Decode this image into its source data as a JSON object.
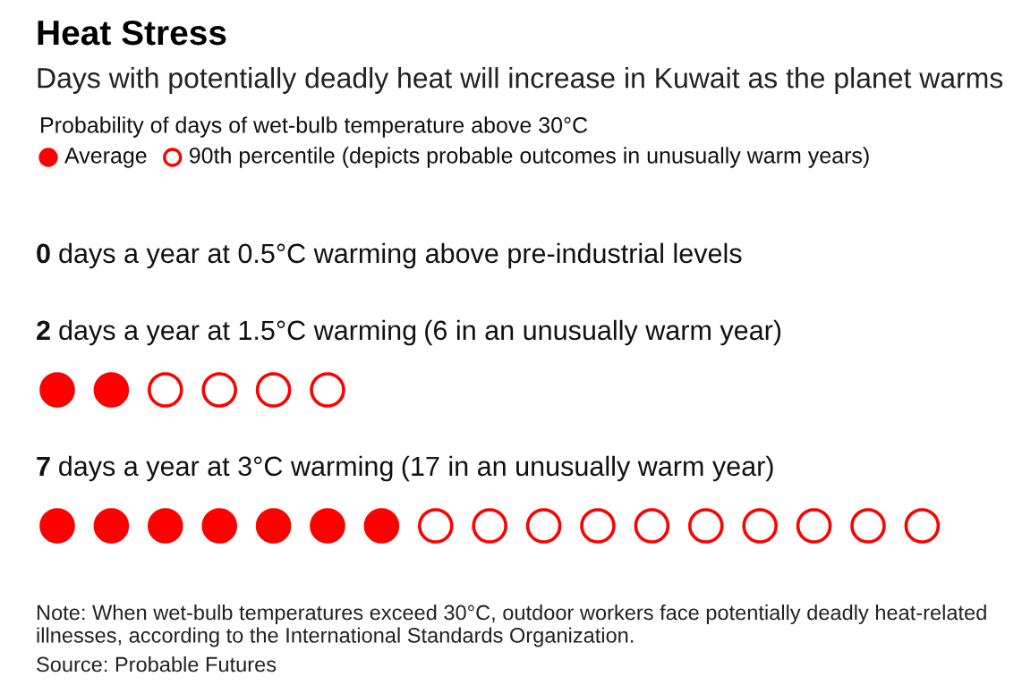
{
  "chart_data": {
    "type": "other",
    "title": "Heat Stress",
    "subtitle": "Days with potentially deadly heat will increase in Kuwait as the planet warms",
    "legend_title": "Probability of days of wet-bulb temperature above 30°C",
    "categories": [
      "days a year at 0.5°C warming above pre-industrial levels",
      "days a year at 1.5°C warming",
      "days a year at 3°C warming"
    ],
    "series": [
      {
        "name": "Average",
        "color": "#ff0000",
        "values": [
          0,
          2,
          7
        ],
        "value_labels": [
          "0",
          "2",
          "7"
        ]
      },
      {
        "name": "90th percentile (depicts probable outcomes in unusually warm years)",
        "color": "#ff0000",
        "values": [
          null,
          6,
          17
        ],
        "value_labels": [
          null,
          "(6 in an unusually warm year)",
          "(17 in an unusually warm year)"
        ]
      }
    ],
    "legend": "top left",
    "annotations": [
      "Note: When wet-bulb temperatures exceed 30°C, outdoor workers face potentially deadly heat-related illnesses, according to the International Standards Organization.",
      "Source: Probable Futures"
    ]
  }
}
